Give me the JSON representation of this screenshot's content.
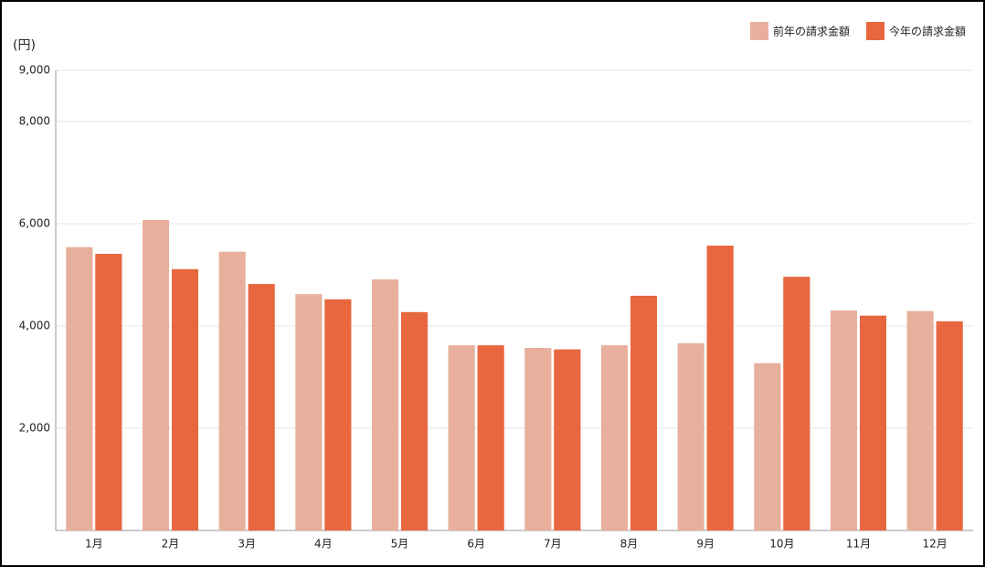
{
  "chart_data": {
    "type": "bar",
    "y_label": "(円)",
    "categories": [
      "1月",
      "2月",
      "3月",
      "4月",
      "5月",
      "6月",
      "7月",
      "8月",
      "9月",
      "10月",
      "11月",
      "12月"
    ],
    "series": [
      {
        "name": "前年の請求金額",
        "color": "#e8b09c",
        "values": [
          5540,
          6070,
          5450,
          4620,
          4910,
          3620,
          3570,
          3620,
          3660,
          3270,
          4300,
          4290
        ]
      },
      {
        "name": "今年の請求金額",
        "color": "#e8673f",
        "values": [
          5410,
          5110,
          4820,
          4520,
          4270,
          3620,
          3540,
          4590,
          5570,
          4960,
          4200,
          4090
        ]
      }
    ],
    "ylim": [
      0,
      9000
    ],
    "yticks": [
      {
        "value": 2000,
        "label": "2,000"
      },
      {
        "value": 4000,
        "label": "4,000"
      },
      {
        "value": 6000,
        "label": "6,000"
      },
      {
        "value": 8000,
        "label": "8,000"
      },
      {
        "value": 9000,
        "label": "9,000"
      }
    ],
    "grid": true,
    "legend": "top-right"
  }
}
